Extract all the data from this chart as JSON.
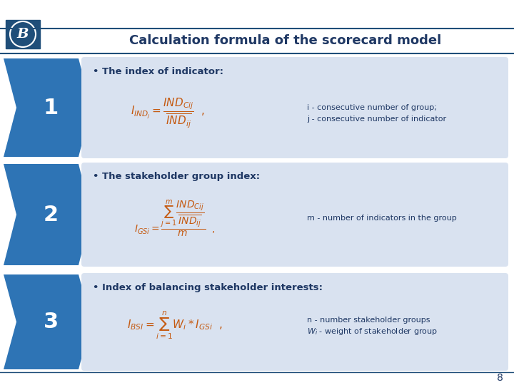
{
  "title": "Calculation formula of the scorecard model",
  "bg_color": "#ffffff",
  "header_line_color": "#1f4e79",
  "title_color": "#1f3864",
  "arrow_color": "#2e74b5",
  "box_bg_color": "#d9e2f0",
  "number_bg_color": "#2e74b5",
  "number_text_color": "#ffffff",
  "formula_color": "#c55a11",
  "text_color": "#1f3864",
  "bullet_color": "#1f3864",
  "page_number": "8",
  "rows": [
    {
      "number": "1",
      "bullet": "The index of indicator:",
      "formula": "$I_{IND_j} = \\dfrac{IND_{Cij}}{\\overline{IND_{ij}}}$  ,",
      "note": "i - consecutive number of group;\nj - consecutive number of indicator"
    },
    {
      "number": "2",
      "bullet": "The stakeholder group index:",
      "formula": "$I_{GSi} = \\dfrac{\\sum_{j=1}^{m} \\dfrac{IND_{Cij}}{\\overline{IND_{ij}}}}{m}$  ,",
      "note": "m - number of indicators in the group"
    },
    {
      "number": "3",
      "bullet": "Index of balancing stakeholder interests:",
      "formula": "$I_{BSI} = \\sum_{i=1}^{n} W_i * I_{GSi}$  ,",
      "note": "n - number stakeholder groups\n$W_i$ - weight of stakeholder group"
    }
  ]
}
